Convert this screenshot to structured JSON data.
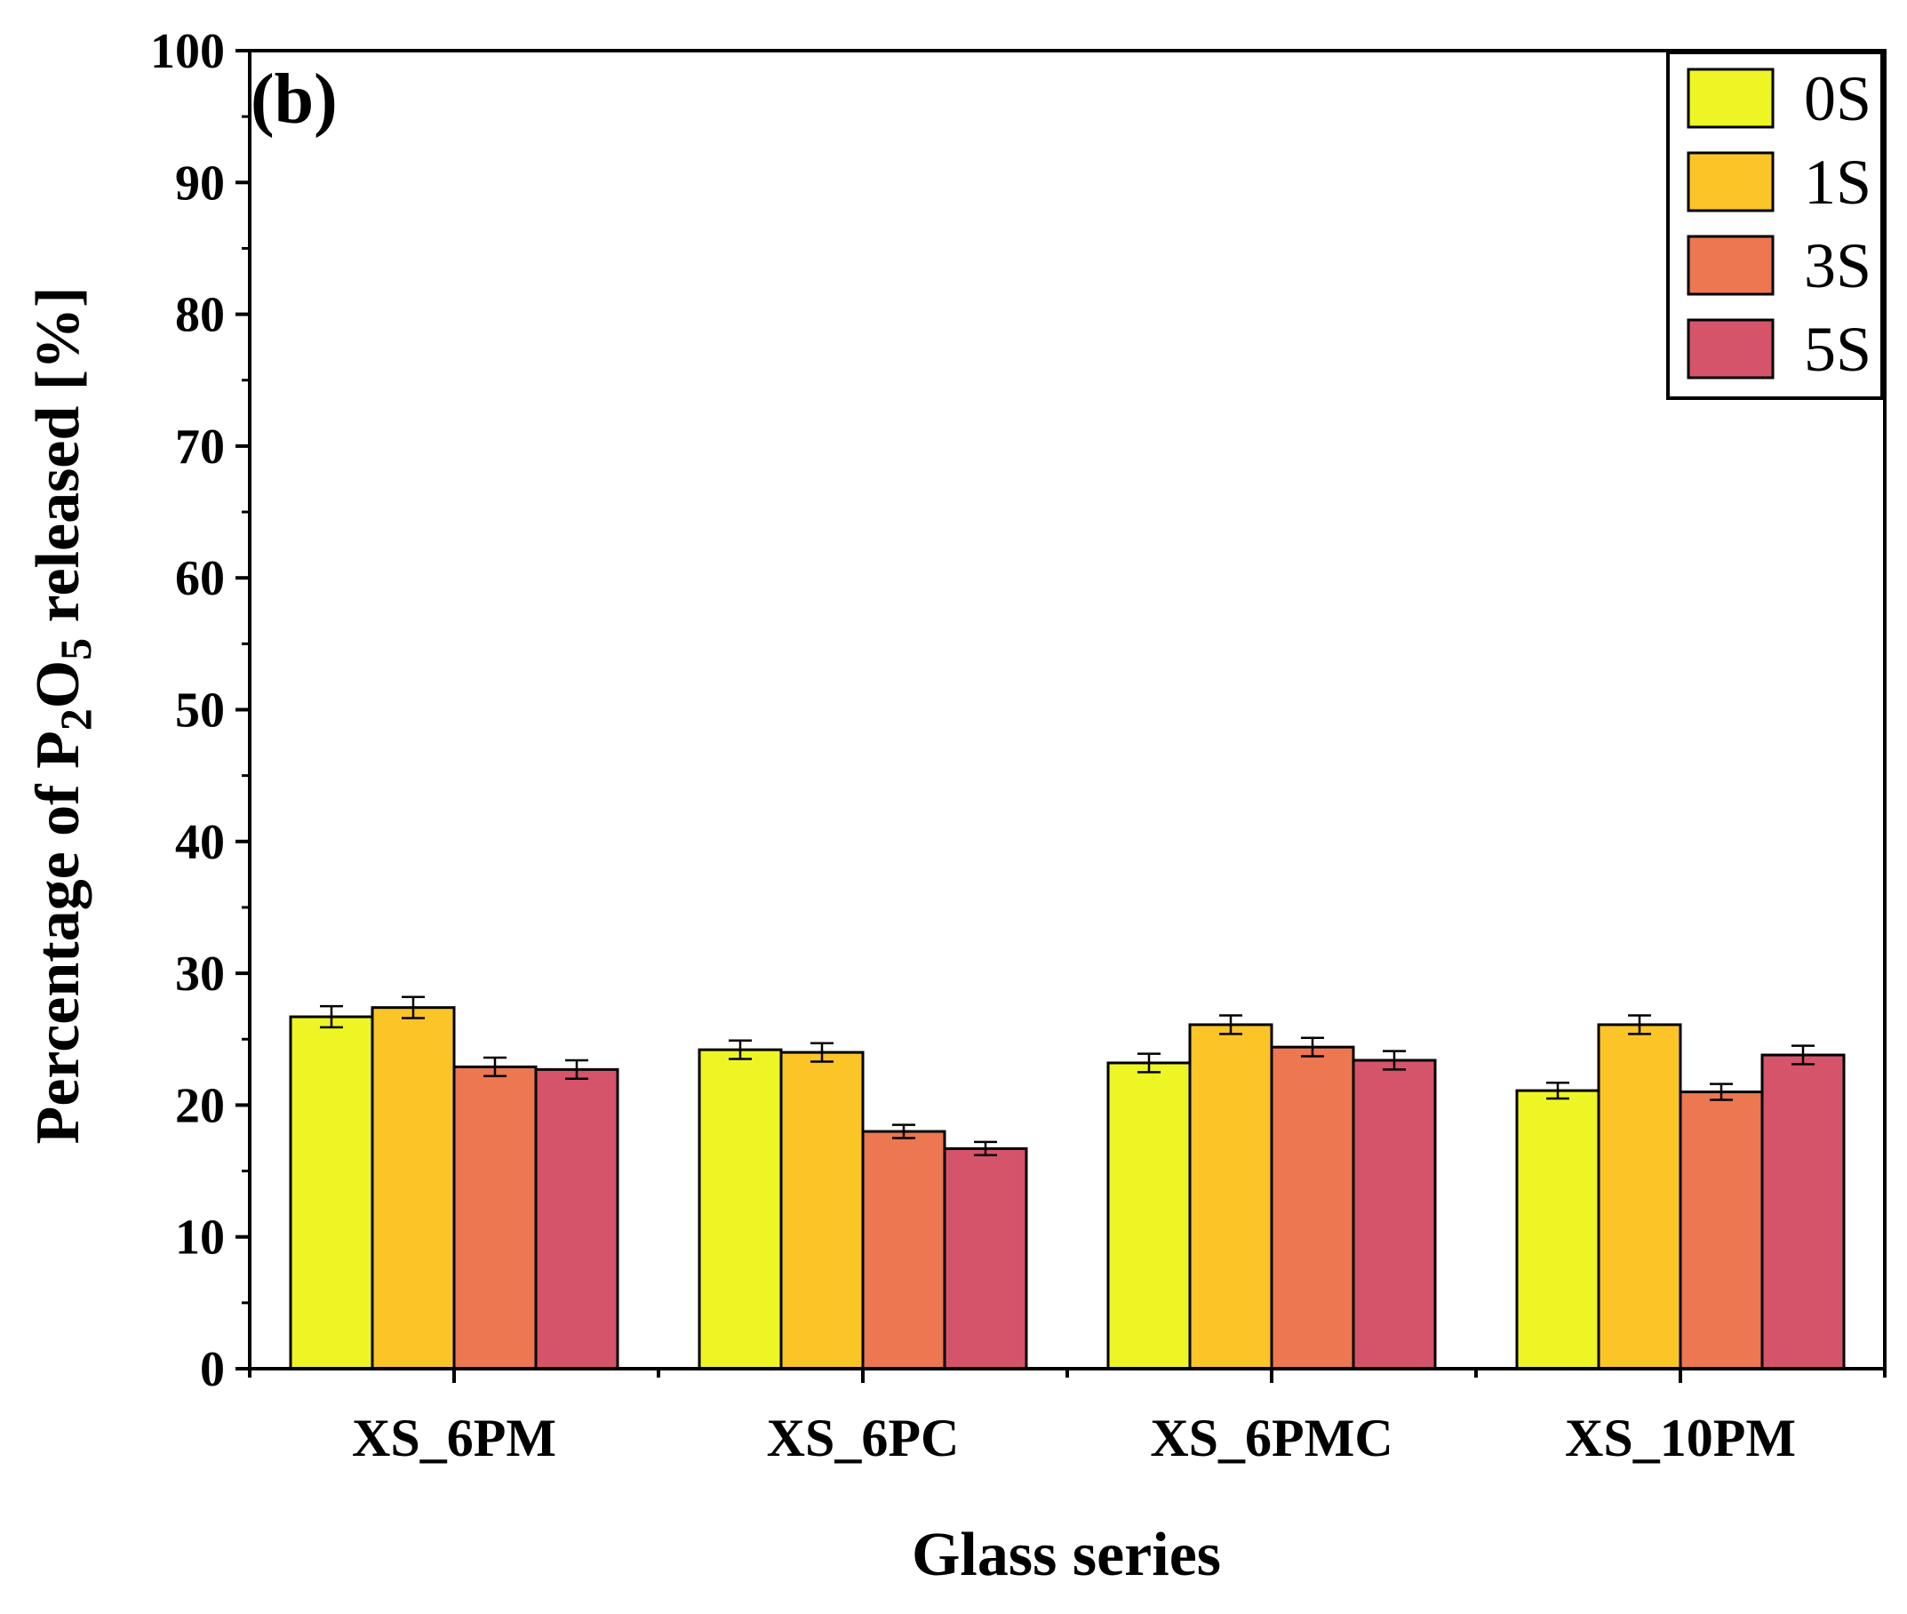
{
  "chart_data": {
    "type": "bar",
    "panel_label": "(b)",
    "title": "",
    "xlabel": "Glass series",
    "ylabel_parts": [
      "Percentage of P",
      "2",
      "O",
      "5",
      " released [%]"
    ],
    "ylim": [
      0,
      100
    ],
    "yticks": [
      0,
      10,
      20,
      30,
      40,
      50,
      60,
      70,
      80,
      90,
      100
    ],
    "grid": false,
    "legend_position": "top-right",
    "categories": [
      "XS_6PM",
      "XS_6PC",
      "XS_6PMC",
      "XS_10PM"
    ],
    "series": [
      {
        "name": "0S",
        "color": "#eef524",
        "values": [
          26.7,
          24.2,
          23.2,
          21.1
        ],
        "errors": [
          0.8,
          0.7,
          0.7,
          0.6
        ]
      },
      {
        "name": "1S",
        "color": "#fbc528",
        "values": [
          27.4,
          24.0,
          26.1,
          26.1
        ],
        "errors": [
          0.8,
          0.7,
          0.7,
          0.7
        ]
      },
      {
        "name": "3S",
        "color": "#ec7751",
        "values": [
          22.9,
          18.0,
          24.4,
          21.0
        ],
        "errors": [
          0.7,
          0.5,
          0.7,
          0.6
        ]
      },
      {
        "name": "5S",
        "color": "#d6546a",
        "values": [
          22.7,
          16.7,
          23.4,
          23.8
        ],
        "errors": [
          0.7,
          0.5,
          0.7,
          0.7
        ]
      }
    ]
  }
}
